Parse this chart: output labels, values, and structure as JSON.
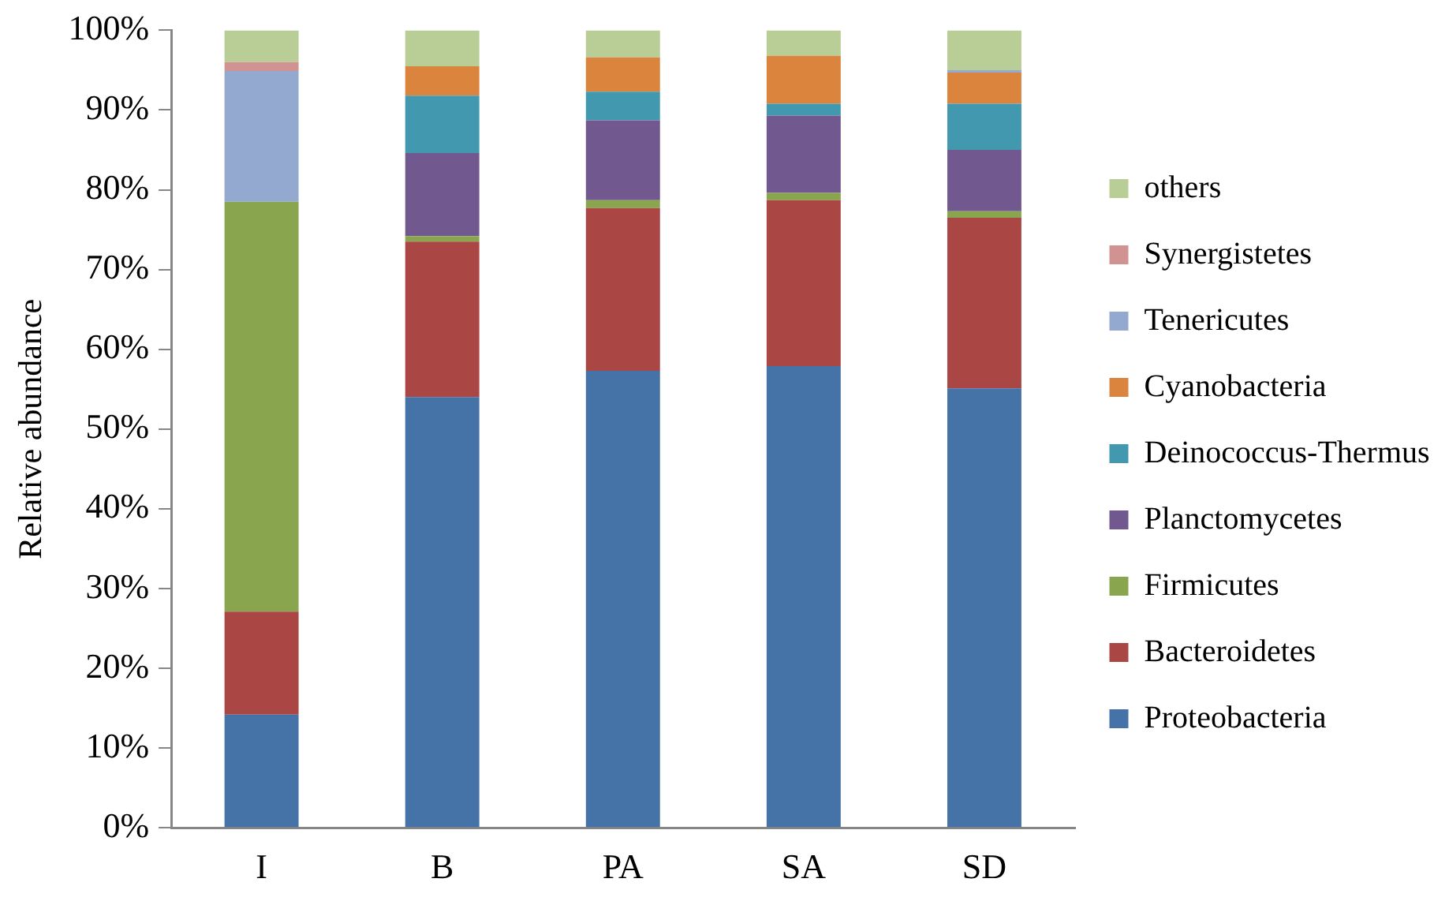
{
  "chart_data": {
    "type": "bar",
    "stacked": true,
    "ylabel": "Relative abundance",
    "categories": [
      "I",
      "B",
      "PA",
      "SA",
      "SD"
    ],
    "series": [
      {
        "name": "Proteobacteria",
        "color": "#4572a7",
        "values": [
          14.2,
          54.0,
          57.3,
          57.9,
          55.1
        ]
      },
      {
        "name": "Bacteroidetes",
        "color": "#aa4643",
        "values": [
          12.9,
          19.5,
          20.4,
          20.8,
          21.4
        ]
      },
      {
        "name": "Firmicutes",
        "color": "#89a54e",
        "values": [
          51.4,
          0.7,
          1.0,
          0.9,
          0.8
        ]
      },
      {
        "name": "Planctomycetes",
        "color": "#71588f",
        "values": [
          0,
          10.4,
          10.0,
          9.7,
          7.7
        ]
      },
      {
        "name": "Deinococcus-Thermus",
        "color": "#4198af",
        "values": [
          0,
          7.2,
          3.6,
          1.5,
          5.8
        ]
      },
      {
        "name": "Cyanobacteria",
        "color": "#db843d",
        "values": [
          0,
          3.7,
          4.3,
          6.0,
          3.9
        ]
      },
      {
        "name": "Tenericutes",
        "color": "#93a9cf",
        "values": [
          16.4,
          0,
          0,
          0,
          0.3
        ]
      },
      {
        "name": "Synergistetes",
        "color": "#d19392",
        "values": [
          1.1,
          0,
          0,
          0,
          0
        ]
      },
      {
        "name": "others",
        "color": "#b9cd96",
        "values": [
          4.0,
          4.5,
          3.4,
          3.2,
          5.0
        ]
      }
    ],
    "ylim": [
      0,
      100
    ],
    "yticks": [
      {
        "value": 0,
        "label": "0%"
      },
      {
        "value": 10,
        "label": "10%"
      },
      {
        "value": 20,
        "label": "20%"
      },
      {
        "value": 30,
        "label": "30%"
      },
      {
        "value": 40,
        "label": "40%"
      },
      {
        "value": 50,
        "label": "50%"
      },
      {
        "value": 60,
        "label": "60%"
      },
      {
        "value": 70,
        "label": "70%"
      },
      {
        "value": 80,
        "label": "80%"
      },
      {
        "value": 90,
        "label": "90%"
      },
      {
        "value": 100,
        "label": "100%"
      }
    ],
    "grid": false,
    "legend": "right"
  }
}
